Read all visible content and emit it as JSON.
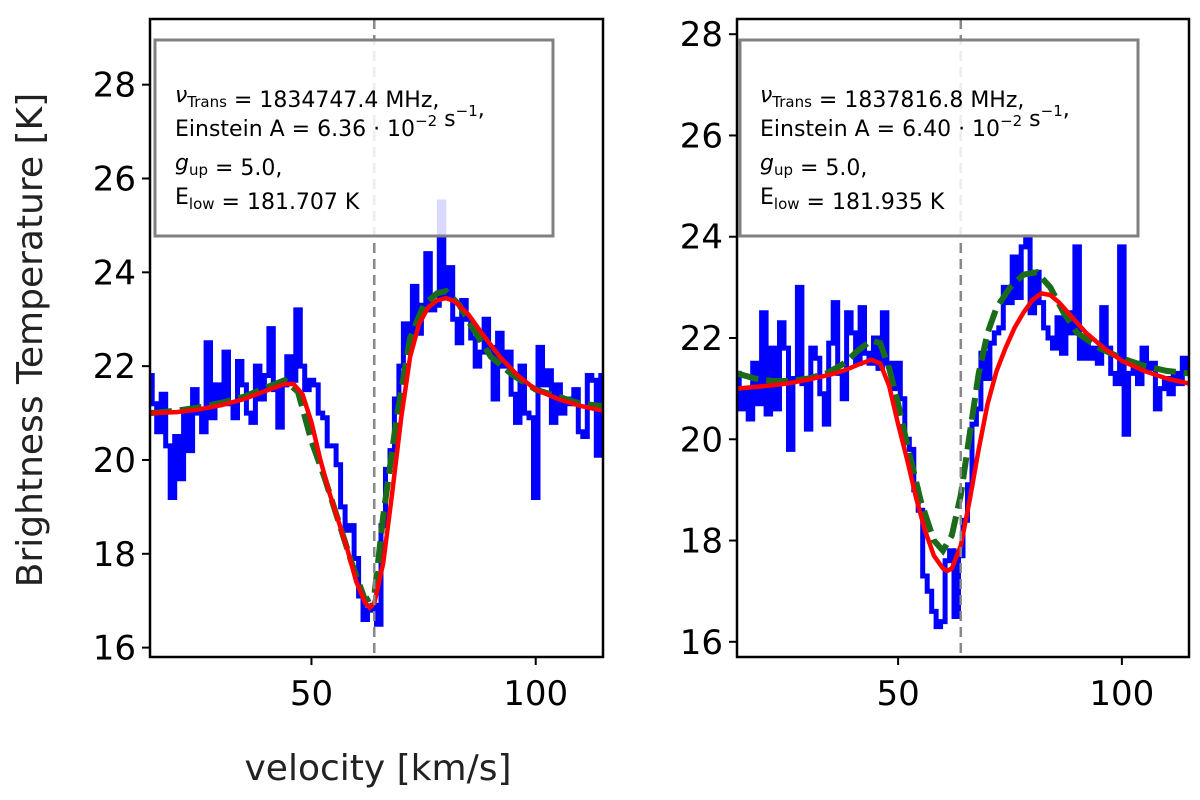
{
  "figure": {
    "ylabel": "Brightness Temperature [K]",
    "xlabel": "velocity [km/s]"
  },
  "colors": {
    "observed": "#0000ff",
    "model_green": "#1a6b1a",
    "model_red": "#ff0000",
    "marker": "#888888",
    "legend_border": "#808080"
  },
  "chart_data": [
    {
      "type": "line",
      "title": "",
      "xlabel": "velocity [km/s]",
      "ylabel": "Brightness Temperature [K]",
      "xlim": [
        14,
        115
      ],
      "ylim": [
        15.8,
        29.4
      ],
      "xticks": [
        50,
        100
      ],
      "yticks": [
        16,
        18,
        20,
        22,
        24,
        26,
        28
      ],
      "vline": 64,
      "info_box": {
        "line1_symbol": "ν",
        "line1_sub": "Trans",
        "line1_text": " = 1834747.4 MHz,",
        "line2_text": "Einstein A = 6.36 · 10",
        "line2_exp": "−2",
        "line2_unit": " s",
        "line2_unit_exp": "−1",
        "line2_end": ",",
        "line3_symbol": "g",
        "line3_sub": "up",
        "line3_text": " = 5.0,",
        "line4_symbol": "E",
        "line4_sub": "low",
        "line4_text": " = 181.707 K"
      },
      "series": [
        {
          "name": "observed",
          "style": "step",
          "x": [
            14,
            15,
            16,
            17,
            18,
            19,
            20,
            21,
            22,
            23,
            24,
            25,
            26,
            27,
            28,
            29,
            30,
            31,
            32,
            33,
            34,
            35,
            36,
            37,
            38,
            39,
            40,
            41,
            42,
            43,
            44,
            45,
            46,
            47,
            48,
            49,
            50,
            51,
            52,
            53,
            54,
            55,
            56,
            57,
            58,
            59,
            60,
            61,
            62,
            63,
            64,
            65,
            66,
            67,
            68,
            69,
            70,
            71,
            72,
            73,
            74,
            75,
            76,
            77,
            78,
            79,
            80,
            81,
            82,
            83,
            84,
            85,
            86,
            87,
            88,
            89,
            90,
            91,
            92,
            93,
            94,
            95,
            96,
            97,
            98,
            99,
            100,
            101,
            102,
            103,
            104,
            105,
            106,
            107,
            108,
            109,
            110,
            111,
            112,
            113,
            114,
            115
          ],
          "values": [
            21.8,
            21.2,
            20.6,
            21.4,
            20.3,
            19.2,
            20.5,
            19.6,
            21.0,
            20.2,
            21.5,
            21.0,
            20.6,
            22.5,
            20.9,
            21.6,
            21.3,
            22.3,
            21.2,
            20.9,
            22.1,
            21.6,
            21.0,
            20.8,
            22.0,
            21.3,
            21.8,
            22.8,
            21.5,
            20.7,
            21.6,
            22.2,
            21.7,
            23.2,
            22.0,
            21.5,
            21.7,
            21.6,
            21.0,
            20.9,
            20.3,
            20.3,
            19.9,
            19.0,
            18.5,
            18.6,
            17.9,
            17.1,
            16.6,
            16.8,
            16.9,
            16.5,
            18.6,
            19.8,
            20.2,
            21.3,
            22.0,
            22.9,
            22.5,
            23.7,
            22.7,
            23.3,
            24.4,
            23.2,
            23.3,
            25.5,
            23.5,
            24.1,
            23.0,
            22.5,
            23.4,
            23.0,
            22.6,
            22.0,
            22.3,
            23.0,
            22.4,
            21.3,
            22.7,
            22.0,
            22.3,
            21.4,
            20.8,
            22.0,
            21.0,
            20.9,
            19.2,
            22.4,
            21.6,
            21.9,
            20.8,
            21.6,
            21.0,
            21.3,
            21.2,
            21.5,
            20.6,
            20.5,
            21.8,
            21.7,
            20.1,
            21.8
          ]
        },
        {
          "name": "model-green",
          "style": "dashed",
          "x": [
            14,
            20,
            25,
            30,
            35,
            40,
            44,
            47,
            50,
            53,
            56,
            59,
            62,
            64,
            66,
            69,
            72,
            75,
            78,
            80,
            83,
            86,
            90,
            95,
            100,
            105,
            110,
            115
          ],
          "values": [
            21.0,
            21.05,
            21.12,
            21.22,
            21.35,
            21.55,
            21.7,
            21.45,
            20.4,
            19.6,
            18.7,
            17.8,
            17.0,
            17.1,
            18.8,
            20.9,
            22.6,
            23.3,
            23.55,
            23.6,
            23.3,
            22.8,
            22.2,
            21.8,
            21.5,
            21.35,
            21.2,
            21.15
          ]
        },
        {
          "name": "model-red",
          "style": "solid",
          "x": [
            14,
            20,
            25,
            30,
            35,
            40,
            44,
            46,
            48,
            50,
            52,
            54,
            56,
            58,
            60,
            62,
            63,
            64,
            66,
            68,
            70,
            72,
            74,
            76,
            78,
            80,
            82,
            85,
            88,
            92,
            96,
            100,
            105,
            110,
            115
          ],
          "values": [
            21.0,
            21.02,
            21.08,
            21.17,
            21.3,
            21.48,
            21.62,
            21.62,
            21.4,
            20.8,
            20.0,
            19.3,
            18.7,
            18.1,
            17.4,
            16.95,
            16.85,
            16.95,
            17.8,
            19.3,
            20.9,
            22.2,
            22.9,
            23.25,
            23.4,
            23.45,
            23.38,
            23.1,
            22.7,
            22.2,
            21.8,
            21.5,
            21.3,
            21.15,
            21.05
          ]
        }
      ]
    },
    {
      "type": "line",
      "title": "",
      "xlabel": "",
      "ylabel": "",
      "xlim": [
        14,
        115
      ],
      "ylim": [
        15.7,
        28.3
      ],
      "xticks": [
        50,
        100
      ],
      "yticks": [
        16,
        18,
        20,
        22,
        24,
        26,
        28
      ],
      "vline": 64,
      "info_box": {
        "line1_symbol": "ν",
        "line1_sub": "Trans",
        "line1_text": " = 1837816.8 MHz,",
        "line2_text": "Einstein A = 6.40 · 10",
        "line2_exp": "−2",
        "line2_unit": " s",
        "line2_unit_exp": "−1",
        "line2_end": ",",
        "line3_symbol": "g",
        "line3_sub": "up",
        "line3_text": " = 5.0,",
        "line4_symbol": "E",
        "line4_sub": "low",
        "line4_text": " = 181.935 K"
      },
      "series": [
        {
          "name": "observed",
          "style": "step",
          "x": [
            14,
            15,
            16,
            17,
            18,
            19,
            20,
            21,
            22,
            23,
            24,
            25,
            26,
            27,
            28,
            29,
            30,
            31,
            32,
            33,
            34,
            35,
            36,
            37,
            38,
            39,
            40,
            41,
            42,
            43,
            44,
            45,
            46,
            47,
            48,
            49,
            50,
            51,
            52,
            53,
            54,
            55,
            56,
            57,
            58,
            59,
            60,
            61,
            62,
            63,
            64,
            65,
            66,
            67,
            68,
            69,
            70,
            71,
            72,
            73,
            74,
            75,
            76,
            77,
            78,
            79,
            80,
            81,
            82,
            83,
            84,
            85,
            86,
            87,
            88,
            89,
            90,
            91,
            92,
            93,
            94,
            95,
            96,
            97,
            98,
            99,
            100,
            101,
            102,
            103,
            104,
            105,
            106,
            107,
            108,
            109,
            110,
            111,
            112,
            113,
            114,
            115
          ],
          "values": [
            21.3,
            20.6,
            21.0,
            20.4,
            21.5,
            20.7,
            22.5,
            20.5,
            21.8,
            20.6,
            22.3,
            21.8,
            19.8,
            21.2,
            23.0,
            21.1,
            20.2,
            21.8,
            21.6,
            20.9,
            20.3,
            21.9,
            22.7,
            21.3,
            20.8,
            22.5,
            22.1,
            21.5,
            22.6,
            21.7,
            21.5,
            22.0,
            21.4,
            22.5,
            21.5,
            21.0,
            21.5,
            20.8,
            20.0,
            19.8,
            19.0,
            18.6,
            17.3,
            17.0,
            16.6,
            16.3,
            16.4,
            17.6,
            17.8,
            16.5,
            17.7,
            18.4,
            19.1,
            20.3,
            20.6,
            21.7,
            21.2,
            21.9,
            22.1,
            22.2,
            23.0,
            22.7,
            23.6,
            22.8,
            23.8,
            24.0,
            22.5,
            23.3,
            22.7,
            22.2,
            22.0,
            21.8,
            22.4,
            21.7,
            22.5,
            22.1,
            23.8,
            21.6,
            22.0,
            21.6,
            21.8,
            21.5,
            22.6,
            21.8,
            21.3,
            21.1,
            23.8,
            20.1,
            21.3,
            21.5,
            21.1,
            21.8,
            21.4,
            21.5,
            20.6,
            21.0,
            21.2,
            20.9,
            21.3,
            21.1,
            21.6,
            21.4
          ]
        },
        {
          "name": "model-green",
          "style": "dashed",
          "x": [
            14,
            18,
            22,
            26,
            30,
            34,
            38,
            41,
            44,
            46,
            48,
            50,
            52,
            55,
            58,
            60,
            62,
            64,
            66,
            68,
            70,
            72,
            75,
            78,
            81,
            84,
            87,
            90,
            95,
            100,
            105,
            110,
            115
          ],
          "values": [
            21.3,
            21.2,
            21.15,
            21.15,
            21.2,
            21.3,
            21.5,
            21.75,
            21.95,
            21.9,
            21.4,
            20.7,
            19.9,
            18.8,
            18.0,
            17.8,
            18.1,
            18.9,
            20.1,
            21.3,
            22.1,
            22.6,
            23.0,
            23.25,
            23.3,
            23.0,
            22.5,
            22.1,
            21.8,
            21.6,
            21.45,
            21.35,
            21.3
          ]
        },
        {
          "name": "model-red",
          "style": "solid",
          "x": [
            14,
            20,
            25,
            30,
            35,
            38,
            41,
            44,
            46,
            48,
            50,
            52,
            54,
            56,
            58,
            60,
            61,
            62,
            64,
            66,
            68,
            70,
            72,
            74,
            76,
            78,
            80,
            82,
            84,
            86,
            89,
            92,
            96,
            100,
            105,
            110,
            115
          ],
          "values": [
            21.0,
            21.05,
            21.1,
            21.18,
            21.28,
            21.36,
            21.47,
            21.57,
            21.5,
            21.05,
            20.3,
            19.6,
            18.85,
            18.2,
            17.7,
            17.45,
            17.4,
            17.45,
            17.9,
            18.8,
            19.8,
            20.7,
            21.35,
            21.8,
            22.2,
            22.5,
            22.75,
            22.88,
            22.85,
            22.7,
            22.4,
            22.1,
            21.8,
            21.55,
            21.35,
            21.2,
            21.1
          ]
        }
      ]
    }
  ]
}
